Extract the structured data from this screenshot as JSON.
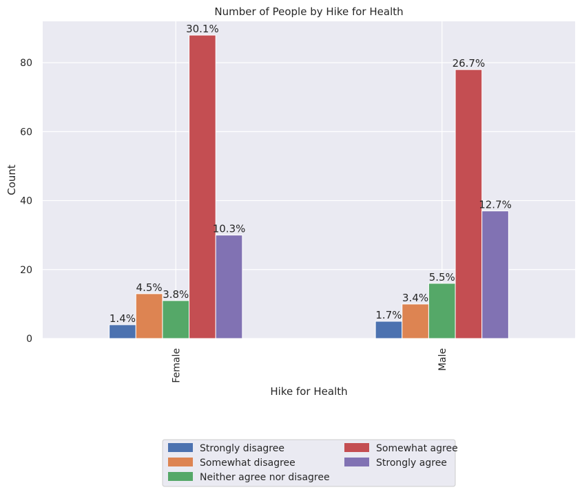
{
  "chart_data": {
    "type": "bar",
    "title": "Number of People by Hike for Health",
    "xlabel": "Hike for Health",
    "ylabel": "Count",
    "categories": [
      "Female",
      "Male"
    ],
    "ylim": [
      0,
      92
    ],
    "yticks": [
      0,
      20,
      40,
      60,
      80
    ],
    "grid": true,
    "legend_position": "bottom-center",
    "series": [
      {
        "name": "Strongly disagree",
        "color": "#4c72b0",
        "values": [
          4,
          5
        ],
        "labels": [
          "1.4%",
          "1.7%"
        ]
      },
      {
        "name": "Somewhat disagree",
        "color": "#dd8452",
        "values": [
          13,
          10
        ],
        "labels": [
          "4.5%",
          "3.4%"
        ]
      },
      {
        "name": "Neither agree nor disagree",
        "color": "#55a868",
        "values": [
          11,
          16
        ],
        "labels": [
          "3.8%",
          "5.5%"
        ]
      },
      {
        "name": "Somewhat agree",
        "color": "#c44e52",
        "values": [
          88,
          78
        ],
        "labels": [
          "30.1%",
          "26.7%"
        ]
      },
      {
        "name": "Strongly agree",
        "color": "#8172b3",
        "values": [
          30,
          37
        ],
        "labels": [
          "10.3%",
          "12.7%"
        ]
      }
    ],
    "legend_order": [
      0,
      3,
      1,
      4,
      2
    ]
  },
  "colors": {
    "plot_background": "#eaeaf2",
    "grid": "#ffffff",
    "text": "#262626"
  }
}
